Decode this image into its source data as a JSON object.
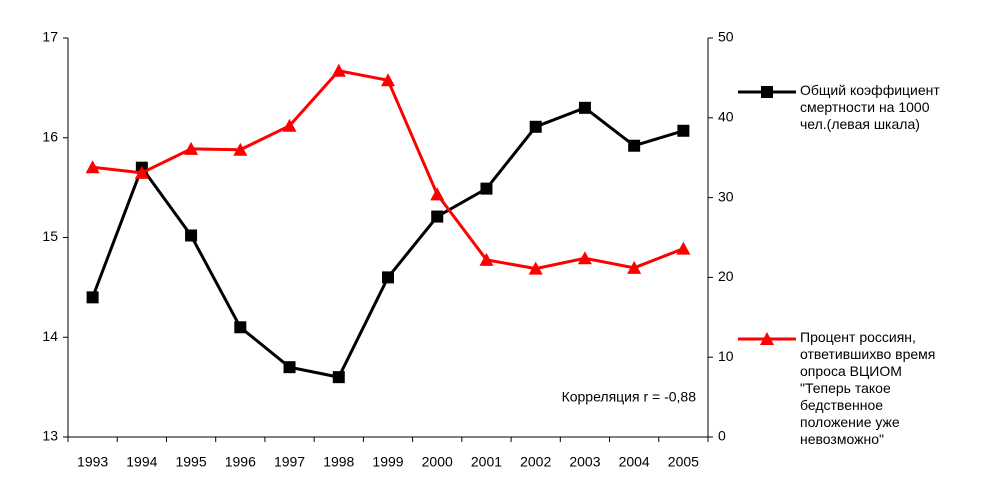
{
  "chart_data": {
    "type": "line",
    "categories": [
      "1993",
      "1994",
      "1995",
      "1996",
      "1997",
      "1998",
      "1999",
      "2000",
      "2001",
      "2002",
      "2003",
      "2004",
      "2005"
    ],
    "series": [
      {
        "name": "Общий коэффициент смертности на 1000 чел.(левая шкала)",
        "color": "#000000",
        "marker": "square",
        "values": [
          14.4,
          15.7,
          15.02,
          14.1,
          13.7,
          13.6,
          14.6,
          15.21,
          15.49,
          16.11,
          16.3,
          15.92,
          16.07
        ]
      },
      {
        "name": "Процент россиян, ответившихво время опроса ВЦИОМ \"Теперь такое бедственное положение уже невозможно\"",
        "color": "#ff0000",
        "marker": "triangle",
        "axis": "y2",
        "values": [
          33.8,
          33.1,
          36.1,
          36.0,
          39.0,
          45.9,
          44.7,
          30.4,
          22.2,
          21.1,
          22.4,
          21.2,
          23.6
        ]
      }
    ],
    "ylim": [
      13,
      17
    ],
    "yticks": [
      13,
      14,
      15,
      16,
      17
    ],
    "y2lim": [
      0,
      50
    ],
    "y2ticks": [
      0,
      10,
      20,
      30,
      40,
      50
    ],
    "annotation": "Корреляция r = -0,88",
    "grid": false
  }
}
